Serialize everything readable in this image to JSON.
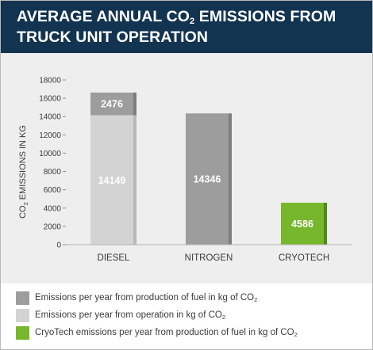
{
  "header": {
    "title_part1": "AVERAGE ANNUAL CO",
    "title_sub": "2",
    "title_part2": " EMISSIONS FROM TRUCK UNIT OPERATION"
  },
  "colors": {
    "header_bg": "#123450",
    "production": "#9d9d9d",
    "production_edge": "#7c7c7c",
    "operation": "#d3d3d3",
    "operation_edge": "#b8b8b8",
    "cryotech": "#77b72b",
    "cryotech_edge": "#4e8a18"
  },
  "chart_data": {
    "type": "bar",
    "stacked": true,
    "categories": [
      "DIESEL",
      "NITROGEN",
      "CRYOTECH"
    ],
    "ylabel_main": "CO",
    "ylabel_sub": "2",
    "ylabel_rest": " EMISSIONS IN KG",
    "ylim": [
      0,
      18000
    ],
    "yticks": [
      0,
      2000,
      4000,
      6000,
      8000,
      10000,
      12000,
      14000,
      16000,
      18000
    ],
    "grid": false,
    "bars": [
      {
        "category": "DIESEL",
        "segments": [
          {
            "kind": "operation",
            "value": 14149,
            "label": "14149"
          },
          {
            "kind": "production",
            "value": 2476,
            "label": "2476"
          }
        ]
      },
      {
        "category": "NITROGEN",
        "segments": [
          {
            "kind": "production",
            "value": 14346,
            "label": "14346"
          }
        ]
      },
      {
        "category": "CRYOTECH",
        "segments": [
          {
            "kind": "cryotech",
            "value": 4586,
            "label": "4586"
          }
        ]
      }
    ]
  },
  "legend": [
    {
      "kind": "production",
      "text": "Emissions per year from production of fuel in kg of CO",
      "sub": "2"
    },
    {
      "kind": "operation",
      "text": "Emissions per year from operation in kg of CO",
      "sub": "2"
    },
    {
      "kind": "cryotech",
      "text": "CryoTech emissions per year from production of fuel in kg of CO",
      "sub": "2"
    }
  ]
}
